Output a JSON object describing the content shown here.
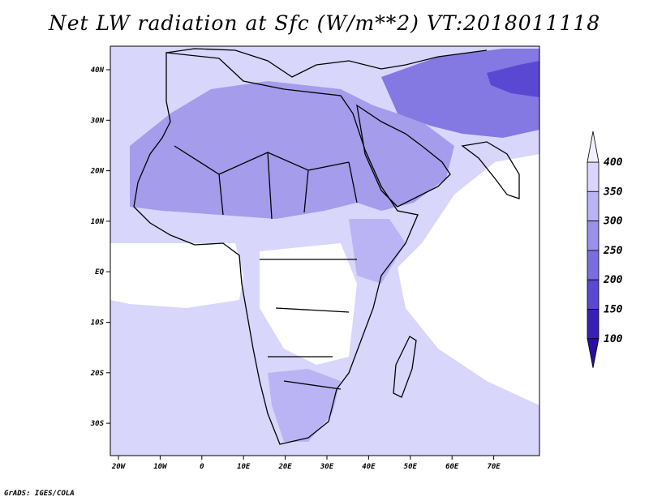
{
  "title": "Net LW radiation at Sfc (W/m**2) VT:2018011118",
  "credit": "GrADS: IGES/COLA",
  "map": {
    "lon_labels": [
      "20W",
      "10W",
      "0",
      "10E",
      "20E",
      "30E",
      "40E",
      "50E",
      "60E",
      "70E"
    ],
    "lat_labels": [
      "40N",
      "30N",
      "20N",
      "10N",
      "EQ",
      "10S",
      "20S",
      "30S"
    ]
  },
  "colorbar": {
    "levels": [
      "100",
      "150",
      "200",
      "250",
      "300",
      "350",
      "400"
    ],
    "colors": [
      "#3a1fb4",
      "#5a48d2",
      "#7a6de0",
      "#9b91eb",
      "#bbb4f4",
      "#dad6fb",
      "#f2f1ff"
    ]
  }
}
